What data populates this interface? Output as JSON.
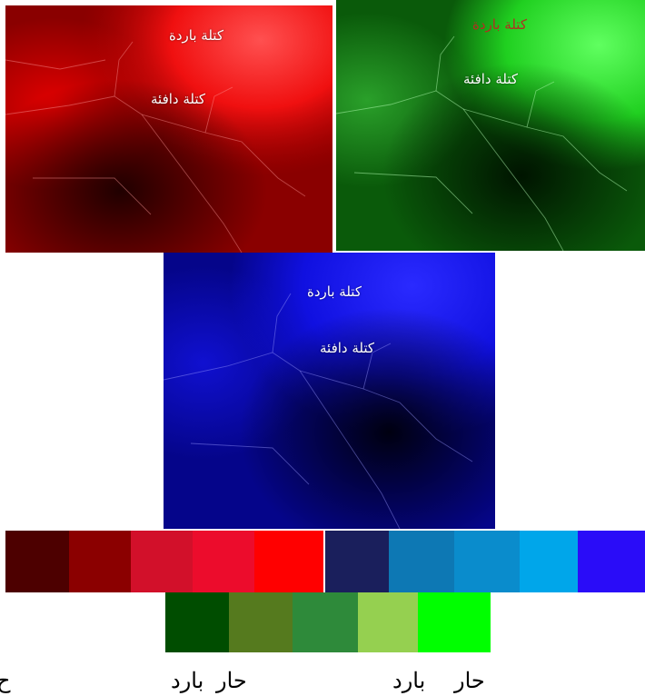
{
  "panels": {
    "red": {
      "label_cold": "كتلة باردة",
      "label_warm": "كتلة دافئة",
      "color": "#ff0000"
    },
    "green": {
      "label_cold": "كتلة باردة",
      "label_warm": "كتلة دافئة",
      "color": "#00ff00"
    },
    "blue": {
      "label_cold": "كتلة باردة",
      "label_warm": "كتلة دافئة",
      "color": "#0000ff"
    }
  },
  "scales": {
    "red": [
      "#4d0000",
      "#8b0000",
      "#d2102a",
      "#ec0c2c",
      "#ff0000"
    ],
    "blue": [
      "#1a1f5c",
      "#0d78b4",
      "#0a8ccc",
      "#00a6ea",
      "#2a0cf8"
    ],
    "green": [
      "#004d00",
      "#557a1e",
      "#2e8a3a",
      "#95d050",
      "#00ff00"
    ]
  },
  "legend": {
    "blue_hot": "حار",
    "blue_cold": "بارد",
    "green_hot": "حار",
    "green_cold": "بارد",
    "red_hot_partial": "ح"
  }
}
